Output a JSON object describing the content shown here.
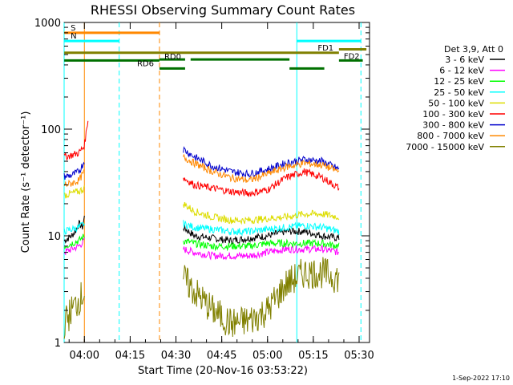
{
  "chart_data": {
    "type": "line",
    "title": "RHESSI Observing Summary Count Rates",
    "xlabel": "Start Time (20-Nov-16 03:53:22)",
    "ylabel": "Count Rate (s⁻¹ detector⁻¹)",
    "yscale": "log",
    "ylim": [
      1,
      1000
    ],
    "xlim": [
      3.8894,
      5.5569
    ],
    "x_unit": "hours of day (decimal)",
    "x_ticks": [
      {
        "t": 4.0,
        "label": "04:00"
      },
      {
        "t": 4.25,
        "label": "04:15"
      },
      {
        "t": 4.5,
        "label": "04:30"
      },
      {
        "t": 4.75,
        "label": "04:45"
      },
      {
        "t": 5.0,
        "label": "05:00"
      },
      {
        "t": 5.25,
        "label": "05:15"
      },
      {
        "t": 5.5,
        "label": "05:30"
      }
    ],
    "y_ticks": [
      {
        "v": 1,
        "label": "1"
      },
      {
        "v": 10,
        "label": "10"
      },
      {
        "v": 100,
        "label": "100"
      },
      {
        "v": 1000,
        "label": "1000"
      }
    ],
    "legend": {
      "placement": "right",
      "header": "Det 3,9, Att 0"
    },
    "series": [
      {
        "name": "3 - 6 keV",
        "color": "#000000",
        "segments": [
          [
            [
              3.89,
              9
            ],
            [
              3.93,
              10
            ],
            [
              3.95,
              11
            ],
            [
              3.97,
              13
            ],
            [
              3.99,
              12
            ],
            [
              4.0,
              15
            ]
          ],
          [
            [
              4.54,
              12
            ],
            [
              4.6,
              10
            ],
            [
              4.7,
              9.5
            ],
            [
              4.8,
              9
            ],
            [
              4.9,
              9.5
            ],
            [
              5.0,
              10
            ],
            [
              5.1,
              11
            ],
            [
              5.2,
              11
            ],
            [
              5.3,
              10
            ],
            [
              5.39,
              9.5
            ]
          ]
        ]
      },
      {
        "name": "6 - 12 keV",
        "color": "#ff00ff",
        "segments": [
          [
            [
              3.89,
              7
            ],
            [
              3.93,
              7.5
            ],
            [
              3.97,
              8
            ],
            [
              4.0,
              9
            ]
          ],
          [
            [
              4.54,
              7.5
            ],
            [
              4.6,
              7
            ],
            [
              4.7,
              6.5
            ],
            [
              4.8,
              6.5
            ],
            [
              4.9,
              6.5
            ],
            [
              5.0,
              7
            ],
            [
              5.1,
              7.5
            ],
            [
              5.2,
              7.5
            ],
            [
              5.3,
              7.5
            ],
            [
              5.39,
              7
            ]
          ]
        ]
      },
      {
        "name": "12 - 25 keV",
        "color": "#00ff00",
        "segments": [
          [
            [
              3.89,
              8
            ],
            [
              3.93,
              8.5
            ],
            [
              3.97,
              9
            ],
            [
              4.0,
              10
            ]
          ],
          [
            [
              4.54,
              9
            ],
            [
              4.6,
              8.5
            ],
            [
              4.7,
              8
            ],
            [
              4.8,
              8
            ],
            [
              4.9,
              8
            ],
            [
              5.0,
              8.5
            ],
            [
              5.1,
              8.5
            ],
            [
              5.2,
              8.5
            ],
            [
              5.3,
              8.5
            ],
            [
              5.39,
              8
            ]
          ]
        ]
      },
      {
        "name": "25 - 50 keV",
        "color": "#00ffff",
        "segments": [
          [
            [
              3.89,
              11
            ],
            [
              3.93,
              11.5
            ],
            [
              3.97,
              12
            ],
            [
              4.0,
              13
            ]
          ],
          [
            [
              4.54,
              13
            ],
            [
              4.6,
              12
            ],
            [
              4.7,
              11.5
            ],
            [
              4.8,
              11
            ],
            [
              4.9,
              11
            ],
            [
              5.0,
              11.5
            ],
            [
              5.1,
              12
            ],
            [
              5.2,
              12.5
            ],
            [
              5.3,
              12
            ],
            [
              5.39,
              11
            ]
          ]
        ]
      },
      {
        "name": "50 - 100 keV",
        "color": "#dddd00",
        "segments": [
          [
            [
              3.89,
              24
            ],
            [
              3.93,
              25
            ],
            [
              3.97,
              26
            ],
            [
              4.0,
              28
            ]
          ],
          [
            [
              4.54,
              20
            ],
            [
              4.6,
              17
            ],
            [
              4.7,
              15
            ],
            [
              4.8,
              14
            ],
            [
              4.9,
              14
            ],
            [
              5.0,
              14.5
            ],
            [
              5.1,
              15
            ],
            [
              5.2,
              16
            ],
            [
              5.3,
              16
            ],
            [
              5.39,
              15
            ]
          ]
        ]
      },
      {
        "name": "100 - 300 keV",
        "color": "#ff0000",
        "segments": [
          [
            [
              3.89,
              55
            ],
            [
              3.93,
              57
            ],
            [
              3.97,
              60
            ],
            [
              4.0,
              70
            ],
            [
              4.02,
              125
            ]
          ],
          [
            [
              4.54,
              35
            ],
            [
              4.6,
              30
            ],
            [
              4.7,
              28
            ],
            [
              4.8,
              26
            ],
            [
              4.9,
              25
            ],
            [
              5.0,
              27
            ],
            [
              5.1,
              35
            ],
            [
              5.2,
              40
            ],
            [
              5.3,
              35
            ],
            [
              5.39,
              28
            ]
          ]
        ]
      },
      {
        "name": "300 - 800 keV",
        "color": "#0000cc",
        "segments": [
          [
            [
              3.89,
              36
            ],
            [
              3.93,
              37
            ],
            [
              3.97,
              40
            ],
            [
              4.0,
              50
            ]
          ],
          [
            [
              4.54,
              65
            ],
            [
              4.6,
              55
            ],
            [
              4.7,
              45
            ],
            [
              4.8,
              40
            ],
            [
              4.9,
              38
            ],
            [
              5.0,
              42
            ],
            [
              5.1,
              48
            ],
            [
              5.2,
              52
            ],
            [
              5.3,
              50
            ],
            [
              5.39,
              42
            ]
          ]
        ]
      },
      {
        "name": "800 - 7000 keV",
        "color": "#ff8800",
        "segments": [
          [
            [
              3.89,
              30
            ],
            [
              3.93,
              31
            ],
            [
              3.97,
              33
            ],
            [
              4.0,
              40
            ]
          ],
          [
            [
              4.54,
              55
            ],
            [
              4.6,
              48
            ],
            [
              4.7,
              40
            ],
            [
              4.8,
              35
            ],
            [
              4.9,
              33
            ],
            [
              5.0,
              38
            ],
            [
              5.1,
              44
            ],
            [
              5.2,
              48
            ],
            [
              5.3,
              46
            ],
            [
              5.39,
              40
            ]
          ]
        ]
      },
      {
        "name": "7000 - 15000 keV",
        "color": "#808000",
        "segments": [
          [
            [
              3.89,
              1.5
            ],
            [
              3.93,
              2
            ],
            [
              3.97,
              2.5
            ],
            [
              4.0,
              3
            ]
          ],
          [
            [
              4.54,
              4
            ],
            [
              4.6,
              3
            ],
            [
              4.7,
              2
            ],
            [
              4.8,
              1.5
            ],
            [
              4.9,
              1.6
            ],
            [
              5.0,
              2
            ],
            [
              5.1,
              3.5
            ],
            [
              5.2,
              4.5
            ],
            [
              5.3,
              4.5
            ],
            [
              5.39,
              4
            ]
          ]
        ]
      }
    ],
    "vertical_markers": [
      {
        "t": 3.8894,
        "color": "#00ffff",
        "style": "solid"
      },
      {
        "t": 4.0,
        "color": "#ff8800",
        "style": "solid"
      },
      {
        "t": 4.19,
        "color": "#00ffff",
        "style": "dashed"
      },
      {
        "t": 4.41,
        "color": "#ff8800",
        "style": "dashed"
      },
      {
        "t": 5.16,
        "color": "#00ffff",
        "style": "solid"
      },
      {
        "t": 5.51,
        "color": "#00ffff",
        "style": "dashed"
      }
    ],
    "flag_bars": [
      {
        "label": "S",
        "color": "#ff8800",
        "v": 800,
        "segments": [
          [
            3.89,
            4.41
          ]
        ]
      },
      {
        "label": "N",
        "color": "#00ffff",
        "v": 670,
        "segments": [
          [
            3.89,
            4.19
          ]
        ]
      },
      {
        "label": "FD1",
        "color": "#00ffff",
        "v": 670,
        "segments": [
          [
            5.16,
            5.51
          ]
        ]
      },
      {
        "label": "FD2",
        "color": "#808000",
        "v": 560,
        "segments": [
          [
            5.39,
            5.54
          ]
        ]
      },
      {
        "label": "",
        "color": "#808000",
        "v": 520,
        "segments": [
          [
            3.89,
            5.39
          ]
        ]
      },
      {
        "label": "RD0",
        "color": "#007000",
        "v": 450,
        "segments": [
          [
            4.41,
            4.55
          ],
          [
            4.58,
            5.12
          ]
        ]
      },
      {
        "label": "RD6",
        "color": "#007000",
        "v": 440,
        "segments": [
          [
            3.89,
            4.41
          ],
          [
            5.39,
            5.52
          ]
        ]
      },
      {
        "label": "",
        "color": "#007000",
        "v": 370,
        "segments": [
          [
            4.41,
            4.55
          ],
          [
            5.12,
            5.31
          ]
        ]
      }
    ]
  },
  "footer": {
    "date_stamp": "1-Sep-2022 17:10"
  }
}
